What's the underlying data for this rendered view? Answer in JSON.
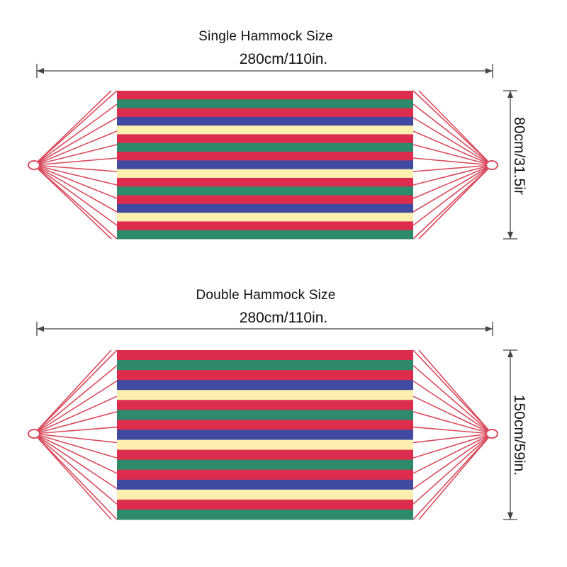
{
  "colors": {
    "rope": "#d94b5e",
    "dimension_line": "#444444",
    "stripe_red": "#dc2d4f",
    "stripe_green": "#2d8a6a",
    "stripe_blue": "#3f4aa0",
    "stripe_cream": "#fcefb0"
  },
  "single": {
    "title": "Single Hammock Size",
    "length": "280cm/110in.",
    "width": "80cm/31.5ir",
    "stripes": [
      "red",
      "green",
      "red",
      "blue",
      "cream",
      "red",
      "green",
      "red",
      "blue",
      "cream",
      "red",
      "green",
      "red",
      "blue",
      "cream",
      "red",
      "green"
    ]
  },
  "double": {
    "title": "Double Hammock Size",
    "length": "280cm/110in.",
    "width": "150cm/59in.",
    "stripes": [
      "red",
      "green",
      "red",
      "blue",
      "cream",
      "red",
      "green",
      "red",
      "blue",
      "cream",
      "red",
      "green",
      "red",
      "blue",
      "cream",
      "red",
      "green"
    ]
  }
}
